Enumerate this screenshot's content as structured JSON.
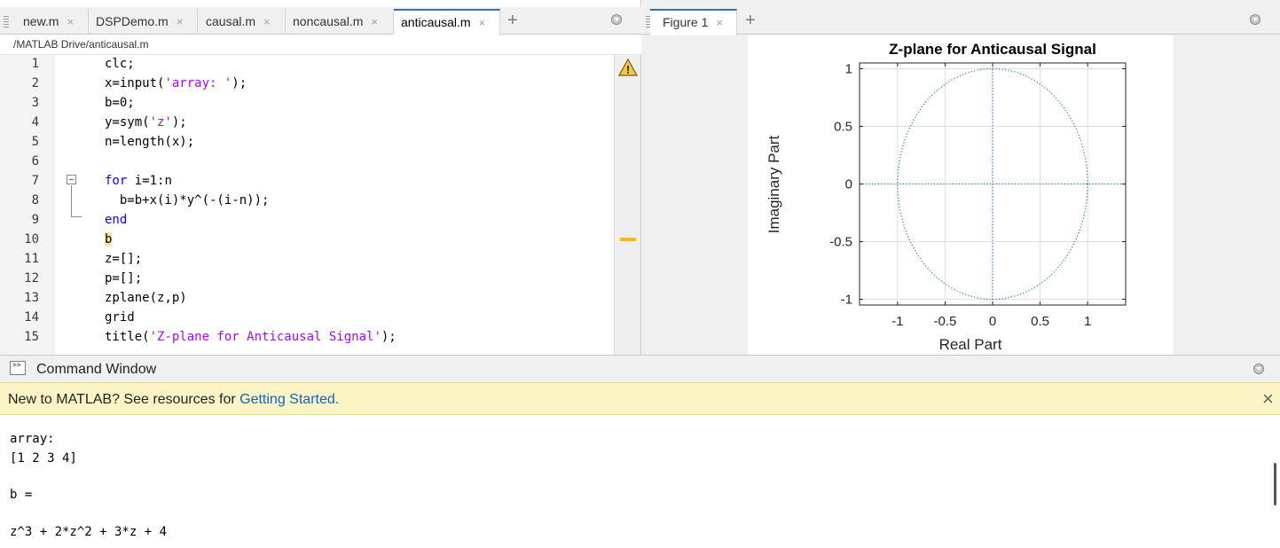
{
  "editor": {
    "tabs": [
      {
        "label": "new.m"
      },
      {
        "label": "DSPDemo.m"
      },
      {
        "label": "causal.m"
      },
      {
        "label": "noncausal.m"
      },
      {
        "label": "anticausal.m"
      }
    ],
    "close_glyph": "×",
    "add_glyph": "+",
    "path": "/MATLAB Drive/anticausal.m",
    "lines": [
      {
        "num": "1"
      },
      {
        "num": "2"
      },
      {
        "num": "3"
      },
      {
        "num": "4"
      },
      {
        "num": "5"
      },
      {
        "num": "6"
      },
      {
        "num": "7"
      },
      {
        "num": "8"
      },
      {
        "num": "9"
      },
      {
        "num": "10"
      },
      {
        "num": "11"
      },
      {
        "num": "12"
      },
      {
        "num": "13"
      },
      {
        "num": "14"
      },
      {
        "num": "15"
      }
    ],
    "code": {
      "l1": "clc;",
      "l2a": "x=input(",
      "l2s": "'array: '",
      "l2b": ");",
      "l3": "b=0;",
      "l4a": "y=sym(",
      "l4s": "'z'",
      "l4b": ");",
      "l5": "n=length(x);",
      "l7k": "for",
      "l7": " i=1:n",
      "l8": "  b=b+x(i)*y^(-(i-n));",
      "l9k": "end",
      "l10": "b",
      "l11": "z=[];",
      "l12": "p=[];",
      "l13": "zplane(z,p)",
      "l14": "grid",
      "l15a": "title(",
      "l15s": "'Z-plane for Anticausal Signal'",
      "l15b": ");"
    },
    "warning_glyph": "!"
  },
  "figure": {
    "tab_label": "Figure 1",
    "close_glyph": "×",
    "add_glyph": "+"
  },
  "chart_data": {
    "type": "scatter",
    "title": "Z-plane for Anticausal Signal",
    "xlabel": "Real Part",
    "ylabel": "Imaginary Part",
    "xlim": [
      -1.4,
      1.4
    ],
    "ylim": [
      -1.05,
      1.05
    ],
    "xticks": [
      -1,
      -0.5,
      0,
      0.5,
      1
    ],
    "xtick_labels": [
      "-1",
      "-0.5",
      "0",
      "0.5",
      "1"
    ],
    "yticks": [
      1,
      0.5,
      0,
      -0.5,
      -1
    ],
    "ytick_labels": [
      "1",
      "0.5",
      "0",
      "-0.5",
      "-1"
    ],
    "grid": true,
    "unit_circle": {
      "radius": 1,
      "style": "dotted"
    },
    "axis_lines": "dotted",
    "zeros": [],
    "poles": [],
    "series_color": "#0072bd"
  },
  "command_window": {
    "title": "Command Window",
    "icon_glyph": ">>",
    "banner_text": "New to MATLAB? See resources for ",
    "banner_link": "Getting Started",
    "banner_end": ".",
    "banner_close": "×",
    "output": [
      "array:",
      "[1 2 3 4]",
      "",
      "b =",
      "",
      "z^3 + 2*z^2 + 3*z + 4"
    ]
  }
}
